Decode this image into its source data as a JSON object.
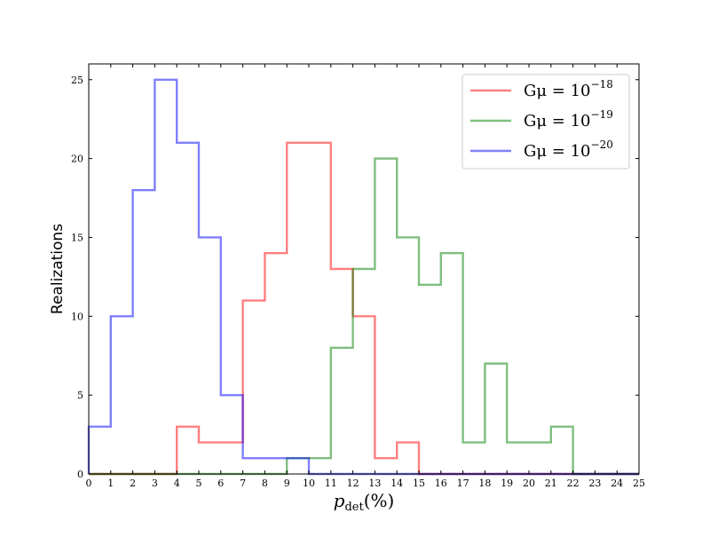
{
  "chart_data": {
    "type": "histogram",
    "title": "",
    "xlabel": {
      "base": "p",
      "subscript": "det",
      "suffix": "(%)"
    },
    "ylabel": "Realizations",
    "xlim": [
      0,
      25
    ],
    "ylim": [
      0,
      26
    ],
    "x_ticks": [
      0,
      1,
      2,
      3,
      4,
      5,
      6,
      7,
      8,
      9,
      10,
      11,
      12,
      13,
      14,
      15,
      16,
      17,
      18,
      19,
      20,
      21,
      22,
      23,
      24,
      25
    ],
    "y_ticks": [
      0,
      5,
      10,
      15,
      20,
      25
    ],
    "grid": false,
    "legend_position": "top-right",
    "bin_edges": [
      0,
      1,
      2,
      3,
      4,
      5,
      6,
      7,
      8,
      9,
      10,
      11,
      12,
      13,
      14,
      15,
      16,
      17,
      18,
      19,
      20,
      21,
      22,
      23,
      24,
      25
    ],
    "series": [
      {
        "name_base": "Gμ = 10",
        "name_exponent": "−18",
        "color": "#f08080",
        "stroke": "#ff0000",
        "counts": [
          0,
          0,
          0,
          0,
          3,
          2,
          2,
          11,
          14,
          21,
          21,
          13,
          10,
          1,
          2,
          0,
          0,
          0,
          0,
          0,
          0,
          0,
          0,
          0,
          0
        ]
      },
      {
        "name_base": "Gμ = 10",
        "name_exponent": "−19",
        "color": "#7fbf7f",
        "stroke": "#008000",
        "counts": [
          0,
          0,
          0,
          0,
          0,
          0,
          0,
          0,
          0,
          1,
          1,
          8,
          13,
          20,
          15,
          12,
          14,
          2,
          7,
          2,
          2,
          3,
          0,
          0,
          0
        ]
      },
      {
        "name_base": "Gμ = 10",
        "name_exponent": "−20",
        "color": "#7f7ff5",
        "stroke": "#0000ff",
        "counts": [
          3,
          10,
          18,
          25,
          21,
          15,
          5,
          1,
          1,
          1,
          0,
          0,
          0,
          0,
          0,
          0,
          0,
          0,
          0,
          0,
          0,
          0,
          0,
          0,
          0
        ]
      }
    ]
  }
}
